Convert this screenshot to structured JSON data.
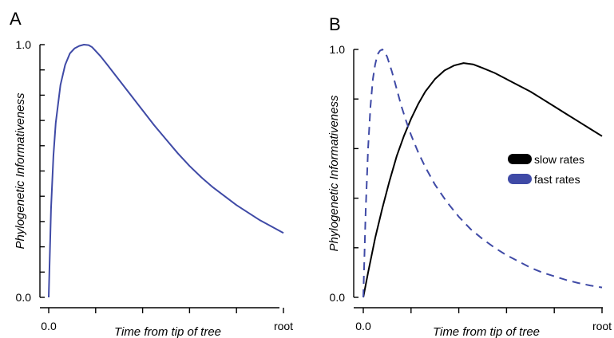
{
  "chart_data": [
    {
      "type": "line",
      "panel_label": "A",
      "xlabel": "Time from tip of tree",
      "ylabel": "Phylogenetic Informativeness",
      "x_tick_labels": [
        "0.0",
        "",
        "",
        "",
        "",
        "root"
      ],
      "y_tick_labels": [
        "0.0",
        "",
        "",
        "",
        "",
        "",
        "",
        "",
        "",
        "",
        "1.0"
      ],
      "xlim": [
        0,
        1
      ],
      "ylim": [
        0,
        1
      ],
      "grid": false,
      "series": [
        {
          "color": "#3f4aa6",
          "dash": "solid",
          "x": [
            0.0,
            0.01,
            0.02,
            0.03,
            0.05,
            0.07,
            0.09,
            0.11,
            0.13,
            0.15,
            0.17,
            0.185,
            0.2,
            0.22,
            0.25,
            0.3,
            0.35,
            0.4,
            0.45,
            0.5,
            0.55,
            0.6,
            0.65,
            0.7,
            0.75,
            0.8,
            0.85,
            0.9,
            0.95,
            1.0
          ],
          "y": [
            0.0,
            0.35,
            0.56,
            0.69,
            0.84,
            0.92,
            0.965,
            0.985,
            0.995,
            1.0,
            0.998,
            0.99,
            0.975,
            0.955,
            0.92,
            0.86,
            0.8,
            0.74,
            0.68,
            0.625,
            0.57,
            0.52,
            0.475,
            0.435,
            0.4,
            0.365,
            0.335,
            0.305,
            0.28,
            0.255
          ]
        }
      ]
    },
    {
      "type": "line",
      "panel_label": "B",
      "xlabel": "Time from tip of tree",
      "ylabel": "Phylogenetic Informativeness",
      "x_tick_labels": [
        "0.0",
        "",
        "",
        "",
        "",
        "root"
      ],
      "y_tick_labels": [
        "0.0",
        "",
        "",
        "",
        "",
        "1.0"
      ],
      "xlim": [
        0,
        1
      ],
      "ylim": [
        0,
        1
      ],
      "grid": false,
      "legend_position": "right",
      "series": [
        {
          "name": "slow rates",
          "color": "#000000",
          "dash": "solid",
          "x": [
            0.0,
            0.02,
            0.05,
            0.08,
            0.11,
            0.14,
            0.17,
            0.2,
            0.23,
            0.26,
            0.3,
            0.34,
            0.38,
            0.42,
            0.46,
            0.5,
            0.55,
            0.6,
            0.65,
            0.7,
            0.75,
            0.8,
            0.85,
            0.9,
            0.95,
            1.0
          ],
          "y": [
            0.0,
            0.1,
            0.24,
            0.36,
            0.47,
            0.57,
            0.65,
            0.72,
            0.78,
            0.83,
            0.88,
            0.915,
            0.935,
            0.945,
            0.94,
            0.925,
            0.905,
            0.88,
            0.855,
            0.83,
            0.8,
            0.77,
            0.74,
            0.71,
            0.68,
            0.65
          ]
        },
        {
          "name": "fast rates",
          "color": "#3f4aa6",
          "dash": "dashed",
          "x": [
            0.0,
            0.01,
            0.02,
            0.03,
            0.04,
            0.05,
            0.06,
            0.07,
            0.08,
            0.09,
            0.1,
            0.12,
            0.14,
            0.16,
            0.18,
            0.2,
            0.23,
            0.26,
            0.3,
            0.35,
            0.4,
            0.45,
            0.5,
            0.55,
            0.6,
            0.65,
            0.7,
            0.75,
            0.8,
            0.85,
            0.9,
            0.95,
            1.0
          ],
          "y": [
            0.0,
            0.35,
            0.6,
            0.77,
            0.88,
            0.94,
            0.98,
            0.995,
            1.0,
            0.99,
            0.97,
            0.91,
            0.84,
            0.77,
            0.71,
            0.655,
            0.585,
            0.525,
            0.455,
            0.385,
            0.325,
            0.275,
            0.235,
            0.2,
            0.17,
            0.145,
            0.12,
            0.1,
            0.085,
            0.07,
            0.058,
            0.048,
            0.04
          ]
        }
      ]
    }
  ]
}
